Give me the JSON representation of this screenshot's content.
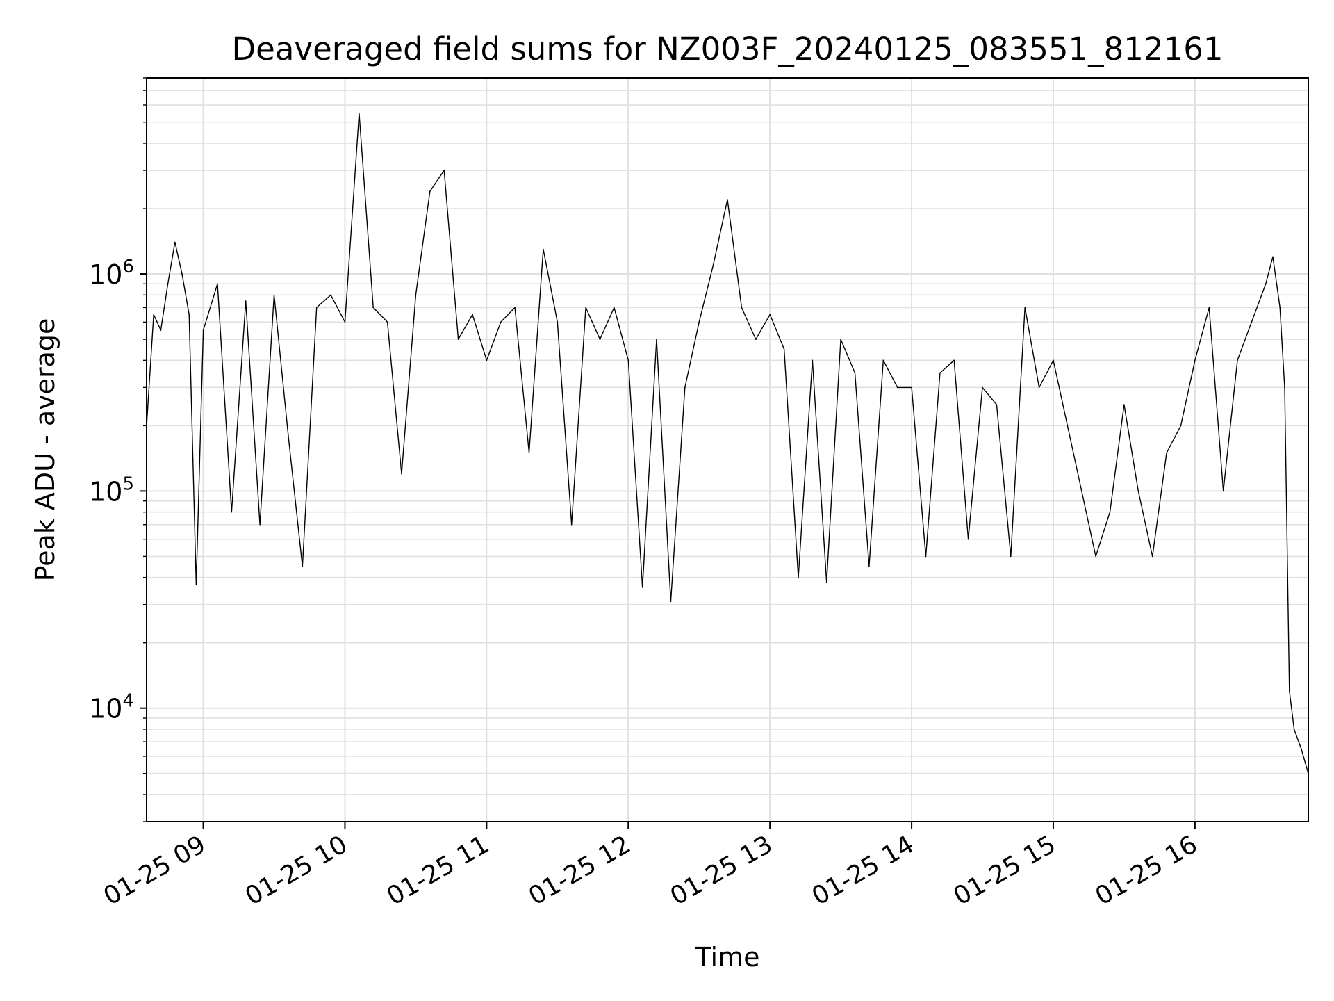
{
  "chart_data": {
    "type": "line",
    "title": "Deaveraged field sums for NZ003F_20240125_083551_812161",
    "xlabel": "Time",
    "ylabel": "Peak ADU - average",
    "yscale": "log",
    "grid": true,
    "legend": "none",
    "colors": {
      "line": "#000000",
      "grid": "#e0e0e0",
      "axis": "#000000",
      "background": "#ffffff"
    },
    "xlim": [
      "2024-01-25 08:36",
      "2024-01-25 16:48"
    ],
    "ylim": [
      3000,
      8000000
    ],
    "x_ticks": [
      {
        "t": "2024-01-25 09:00",
        "label": "01-25 09"
      },
      {
        "t": "2024-01-25 10:00",
        "label": "01-25 10"
      },
      {
        "t": "2024-01-25 11:00",
        "label": "01-25 11"
      },
      {
        "t": "2024-01-25 12:00",
        "label": "01-25 12"
      },
      {
        "t": "2024-01-25 13:00",
        "label": "01-25 13"
      },
      {
        "t": "2024-01-25 14:00",
        "label": "01-25 14"
      },
      {
        "t": "2024-01-25 15:00",
        "label": "01-25 15"
      },
      {
        "t": "2024-01-25 16:00",
        "label": "01-25 16"
      }
    ],
    "y_ticks": [
      {
        "value": 10000,
        "base": "10",
        "exp": "4"
      },
      {
        "value": 100000,
        "base": "10",
        "exp": "5"
      },
      {
        "value": 1000000,
        "base": "10",
        "exp": "6"
      }
    ],
    "series": [
      {
        "x": [
          "2024-01-25 08:36",
          "2024-01-25 08:39",
          "2024-01-25 08:42",
          "2024-01-25 08:45",
          "2024-01-25 08:48",
          "2024-01-25 08:51",
          "2024-01-25 08:54",
          "2024-01-25 08:57",
          "2024-01-25 09:00",
          "2024-01-25 09:06",
          "2024-01-25 09:12",
          "2024-01-25 09:18",
          "2024-01-25 09:24",
          "2024-01-25 09:30",
          "2024-01-25 09:36",
          "2024-01-25 09:42",
          "2024-01-25 09:48",
          "2024-01-25 09:54",
          "2024-01-25 10:00",
          "2024-01-25 10:06",
          "2024-01-25 10:12",
          "2024-01-25 10:18",
          "2024-01-25 10:24",
          "2024-01-25 10:30",
          "2024-01-25 10:36",
          "2024-01-25 10:42",
          "2024-01-25 10:48",
          "2024-01-25 10:54",
          "2024-01-25 11:00",
          "2024-01-25 11:06",
          "2024-01-25 11:12",
          "2024-01-25 11:18",
          "2024-01-25 11:24",
          "2024-01-25 11:30",
          "2024-01-25 11:36",
          "2024-01-25 11:42",
          "2024-01-25 11:48",
          "2024-01-25 11:54",
          "2024-01-25 12:00",
          "2024-01-25 12:06",
          "2024-01-25 12:12",
          "2024-01-25 12:18",
          "2024-01-25 12:24",
          "2024-01-25 12:30",
          "2024-01-25 12:36",
          "2024-01-25 12:42",
          "2024-01-25 12:48",
          "2024-01-25 12:54",
          "2024-01-25 13:00",
          "2024-01-25 13:06",
          "2024-01-25 13:12",
          "2024-01-25 13:18",
          "2024-01-25 13:24",
          "2024-01-25 13:30",
          "2024-01-25 13:36",
          "2024-01-25 13:42",
          "2024-01-25 13:48",
          "2024-01-25 13:54",
          "2024-01-25 14:00",
          "2024-01-25 14:06",
          "2024-01-25 14:12",
          "2024-01-25 14:18",
          "2024-01-25 14:24",
          "2024-01-25 14:30",
          "2024-01-25 14:36",
          "2024-01-25 14:42",
          "2024-01-25 14:48",
          "2024-01-25 14:54",
          "2024-01-25 15:00",
          "2024-01-25 15:06",
          "2024-01-25 15:12",
          "2024-01-25 15:18",
          "2024-01-25 15:24",
          "2024-01-25 15:30",
          "2024-01-25 15:36",
          "2024-01-25 15:42",
          "2024-01-25 15:48",
          "2024-01-25 15:54",
          "2024-01-25 16:00",
          "2024-01-25 16:06",
          "2024-01-25 16:12",
          "2024-01-25 16:18",
          "2024-01-25 16:24",
          "2024-01-25 16:30",
          "2024-01-25 16:33",
          "2024-01-25 16:36",
          "2024-01-25 16:38",
          "2024-01-25 16:39",
          "2024-01-25 16:40",
          "2024-01-25 16:42",
          "2024-01-25 16:45",
          "2024-01-25 16:48"
        ],
        "y": [
          200000,
          650000,
          550000,
          900000,
          1400000,
          1000000,
          650000,
          37000,
          550000,
          900000,
          80000,
          750000,
          70000,
          800000,
          180000,
          45000,
          700000,
          800000,
          600000,
          5500000,
          700000,
          600000,
          120000,
          800000,
          2400000,
          3000000,
          500000,
          650000,
          400000,
          600000,
          700000,
          150000,
          1300000,
          600000,
          70000,
          700000,
          500000,
          700000,
          400000,
          36000,
          500000,
          31000,
          300000,
          600000,
          1100000,
          2200000,
          700000,
          500000,
          650000,
          450000,
          40000,
          400000,
          38000,
          500000,
          350000,
          45000,
          400000,
          300000,
          300000,
          50000,
          350000,
          400000,
          60000,
          300000,
          250000,
          50000,
          700000,
          300000,
          400000,
          200000,
          100000,
          50000,
          80000,
          250000,
          100000,
          50000,
          150000,
          200000,
          400000,
          700000,
          100000,
          400000,
          600000,
          900000,
          1200000,
          700000,
          300000,
          60000,
          12000,
          8000,
          6500,
          5000
        ]
      }
    ],
    "annotations": []
  }
}
